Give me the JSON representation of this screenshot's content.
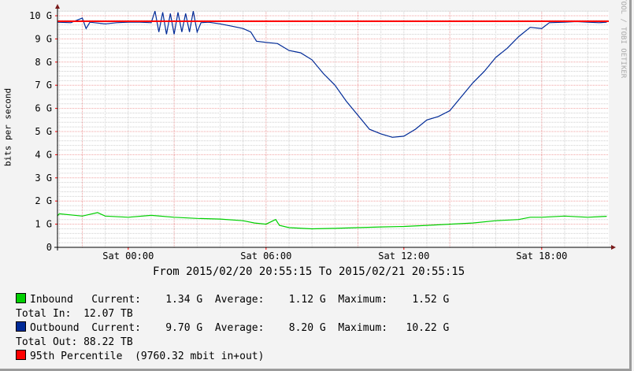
{
  "chart_data": {
    "type": "line",
    "ylabel": "bits per second",
    "ylim": [
      0,
      10
    ],
    "y_ticks": [
      "0",
      "1 G",
      "2 G",
      "3 G",
      "4 G",
      "5 G",
      "6 G",
      "7 G",
      "8 G",
      "9 G",
      "10 G"
    ],
    "x_range": [
      "2015/02/20 20:55",
      "2015/02/21 20:55"
    ],
    "x_ticks": [
      "Sat 00:00",
      "Sat 06:00",
      "Sat 12:00",
      "Sat 18:00"
    ],
    "grid": true,
    "period_label": "From 2015/02/20 20:55:15 To 2015/02/21 20:55:15",
    "watermark": "RRDTOOL / TOBI OETIKER",
    "percentile_95": 9.76,
    "series": [
      {
        "name": "Inbound",
        "color": "#00cf00",
        "points": [
          [
            "2015/02/20 20:55",
            1.35
          ],
          [
            "2015/02/20 21:00",
            1.45
          ],
          [
            "2015/02/20 22:00",
            1.35
          ],
          [
            "2015/02/20 22:40",
            1.5
          ],
          [
            "2015/02/20 23:00",
            1.35
          ],
          [
            "2015/02/21 00:00",
            1.3
          ],
          [
            "2015/02/21 01:00",
            1.38
          ],
          [
            "2015/02/21 02:00",
            1.3
          ],
          [
            "2015/02/21 03:00",
            1.25
          ],
          [
            "2015/02/21 04:00",
            1.22
          ],
          [
            "2015/02/21 05:00",
            1.15
          ],
          [
            "2015/02/21 05:30",
            1.05
          ],
          [
            "2015/02/21 06:00",
            1.0
          ],
          [
            "2015/02/21 06:25",
            1.2
          ],
          [
            "2015/02/21 06:35",
            0.95
          ],
          [
            "2015/02/21 07:00",
            0.85
          ],
          [
            "2015/02/21 08:00",
            0.8
          ],
          [
            "2015/02/21 09:00",
            0.82
          ],
          [
            "2015/02/21 10:00",
            0.85
          ],
          [
            "2015/02/21 11:00",
            0.88
          ],
          [
            "2015/02/21 12:00",
            0.9
          ],
          [
            "2015/02/21 13:00",
            0.95
          ],
          [
            "2015/02/21 14:00",
            1.0
          ],
          [
            "2015/02/21 15:00",
            1.05
          ],
          [
            "2015/02/21 16:00",
            1.15
          ],
          [
            "2015/02/21 17:00",
            1.2
          ],
          [
            "2015/02/21 17:30",
            1.3
          ],
          [
            "2015/02/21 18:00",
            1.3
          ],
          [
            "2015/02/21 19:00",
            1.35
          ],
          [
            "2015/02/21 20:00",
            1.3
          ],
          [
            "2015/02/21 20:50",
            1.34
          ]
        ]
      },
      {
        "name": "Outbound",
        "color": "#002a97",
        "points": [
          [
            "2015/02/20 20:55",
            9.72
          ],
          [
            "2015/02/20 21:30",
            9.7
          ],
          [
            "2015/02/20 22:00",
            9.9
          ],
          [
            "2015/02/20 22:10",
            9.45
          ],
          [
            "2015/02/20 22:20",
            9.72
          ],
          [
            "2015/02/20 23:00",
            9.65
          ],
          [
            "2015/02/20 23:30",
            9.7
          ],
          [
            "2015/02/21 00:00",
            9.72
          ],
          [
            "2015/02/21 00:30",
            9.72
          ],
          [
            "2015/02/21 01:00",
            9.7
          ],
          [
            "2015/02/21 01:10",
            10.2
          ],
          [
            "2015/02/21 01:20",
            9.3
          ],
          [
            "2015/02/21 01:30",
            10.15
          ],
          [
            "2015/02/21 01:40",
            9.2
          ],
          [
            "2015/02/21 01:50",
            10.1
          ],
          [
            "2015/02/21 02:00",
            9.2
          ],
          [
            "2015/02/21 02:10",
            10.15
          ],
          [
            "2015/02/21 02:20",
            9.3
          ],
          [
            "2015/02/21 02:30",
            10.1
          ],
          [
            "2015/02/21 02:40",
            9.3
          ],
          [
            "2015/02/21 02:50",
            10.2
          ],
          [
            "2015/02/21 03:00",
            9.3
          ],
          [
            "2015/02/21 03:10",
            9.7
          ],
          [
            "2015/02/21 03:30",
            9.72
          ],
          [
            "2015/02/21 04:00",
            9.65
          ],
          [
            "2015/02/21 04:30",
            9.55
          ],
          [
            "2015/02/21 05:00",
            9.45
          ],
          [
            "2015/02/21 05:20",
            9.3
          ],
          [
            "2015/02/21 05:35",
            8.9
          ],
          [
            "2015/02/21 06:00",
            8.85
          ],
          [
            "2015/02/21 06:30",
            8.8
          ],
          [
            "2015/02/21 07:00",
            8.5
          ],
          [
            "2015/02/21 07:30",
            8.4
          ],
          [
            "2015/02/21 08:00",
            8.1
          ],
          [
            "2015/02/21 08:30",
            7.5
          ],
          [
            "2015/02/21 09:00",
            7.0
          ],
          [
            "2015/02/21 09:30",
            6.3
          ],
          [
            "2015/02/21 10:00",
            5.7
          ],
          [
            "2015/02/21 10:30",
            5.1
          ],
          [
            "2015/02/21 11:00",
            4.9
          ],
          [
            "2015/02/21 11:30",
            4.75
          ],
          [
            "2015/02/21 12:00",
            4.8
          ],
          [
            "2015/02/21 12:30",
            5.1
          ],
          [
            "2015/02/21 13:00",
            5.5
          ],
          [
            "2015/02/21 13:30",
            5.65
          ],
          [
            "2015/02/21 14:00",
            5.9
          ],
          [
            "2015/02/21 14:30",
            6.5
          ],
          [
            "2015/02/21 15:00",
            7.1
          ],
          [
            "2015/02/21 15:30",
            7.6
          ],
          [
            "2015/02/21 16:00",
            8.2
          ],
          [
            "2015/02/21 16:30",
            8.6
          ],
          [
            "2015/02/21 17:00",
            9.1
          ],
          [
            "2015/02/21 17:30",
            9.5
          ],
          [
            "2015/02/21 18:00",
            9.45
          ],
          [
            "2015/02/21 18:20",
            9.7
          ],
          [
            "2015/02/21 19:00",
            9.72
          ],
          [
            "2015/02/21 19:30",
            9.75
          ],
          [
            "2015/02/21 20:00",
            9.72
          ],
          [
            "2015/02/21 20:30",
            9.7
          ],
          [
            "2015/02/21 20:50",
            9.72
          ]
        ]
      }
    ]
  },
  "legend": {
    "inbound": {
      "label": "Inbound",
      "color": "#00cf00",
      "current_label": "Current:",
      "current": "1.34 G",
      "average_label": "Average:",
      "average": "1.12 G",
      "maximum_label": "Maximum:",
      "maximum": "1.52 G",
      "total": "Total In:  12.07 TB"
    },
    "outbound": {
      "label": "Outbound",
      "color": "#002a97",
      "current_label": "Current:",
      "current": "9.70 G",
      "average_label": "Average:",
      "average": "8.20 G",
      "maximum_label": "Maximum:",
      "maximum": "10.22 G",
      "total": "Total Out: 88.22 TB"
    },
    "percentile": {
      "label": "95th Percentile",
      "value": "(9760.32 mbit in+out)",
      "color": "#ff0000"
    }
  }
}
